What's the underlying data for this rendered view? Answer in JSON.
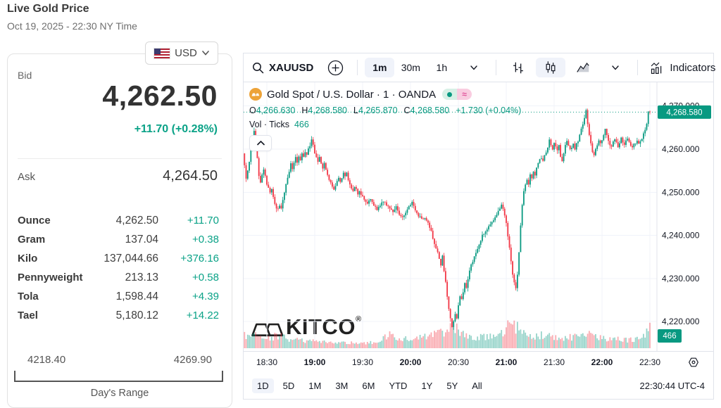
{
  "page": {
    "title": "Live Gold Price",
    "date": "Oct 19, 2025 - 22:30 NY Time"
  },
  "currency_selector": {
    "currency": "USD",
    "flag": "us-flag-icon"
  },
  "quote": {
    "bid_label": "Bid",
    "bid": "4,262.50",
    "bid_change": "+11.70 (+0.28%)",
    "ask_label": "Ask",
    "ask": "4,264.50",
    "units": [
      {
        "label": "Ounce",
        "value": "4,262.50",
        "change": "+11.70"
      },
      {
        "label": "Gram",
        "value": "137.04",
        "change": "+0.38"
      },
      {
        "label": "Kilo",
        "value": "137,044.66",
        "change": "+376.16"
      },
      {
        "label": "Pennyweight",
        "value": "213.13",
        "change": "+0.58"
      },
      {
        "label": "Tola",
        "value": "1,598.44",
        "change": "+4.39"
      },
      {
        "label": "Tael",
        "value": "5,180.12",
        "change": "+14.22"
      }
    ],
    "range": {
      "low": "4218.40",
      "high": "4269.90",
      "label": "Day's Range"
    },
    "accent_color": "#0aa287"
  },
  "chart": {
    "toolbar": {
      "symbol": "XAUUSD",
      "intervals": [
        "1m",
        "30m",
        "1h"
      ],
      "selected_interval": "1m",
      "indicators_label": "Indicators"
    },
    "legend": {
      "title": "Gold Spot / U.S. Dollar · 1 · OANDA",
      "status_approx_symbol": "≈",
      "ohlc": {
        "o_label": "O",
        "o": "4,266.630",
        "h_label": "H",
        "h": "4,268.580",
        "l_label": "L",
        "l": "4,265.870",
        "c_label": "C",
        "c": "4,268.580",
        "change": "+1.730 (+0.04%)"
      },
      "vol_label": "Vol · Ticks",
      "vol": "466"
    },
    "watermark": "KITCO",
    "ranges": [
      "1D",
      "5D",
      "1M",
      "3M",
      "6M",
      "YTD",
      "1Y",
      "5Y",
      "All"
    ],
    "selected_range": "1D",
    "clock": "22:30:44 UTC-4"
  },
  "chart_data": {
    "type": "candlestick",
    "title": "Gold Spot / U.S. Dollar · 1 · OANDA",
    "interval": "1m",
    "exchange": "OANDA",
    "last_price": 4268.58,
    "last_price_label": "4,268.580",
    "vol_badge": "466",
    "start_minute": -14,
    "end_minute": 240,
    "x_ticks": [
      {
        "m": 0,
        "label": "18:30",
        "bold": false
      },
      {
        "m": 30,
        "label": "19:00",
        "bold": true
      },
      {
        "m": 60,
        "label": "19:30",
        "bold": false
      },
      {
        "m": 90,
        "label": "20:00",
        "bold": true
      },
      {
        "m": 120,
        "label": "20:30",
        "bold": false
      },
      {
        "m": 150,
        "label": "21:00",
        "bold": true
      },
      {
        "m": 180,
        "label": "21:30",
        "bold": false
      },
      {
        "m": 210,
        "label": "22:00",
        "bold": true
      },
      {
        "m": 240,
        "label": "22:30",
        "bold": false
      }
    ],
    "y_ticks": [
      {
        "v": 4220,
        "label": "4,220.000"
      },
      {
        "v": 4230,
        "label": "4,230.000"
      },
      {
        "v": 4240,
        "label": "4,240.000"
      },
      {
        "v": 4250,
        "label": "4,250.000"
      },
      {
        "v": 4260,
        "label": "4,260.000"
      },
      {
        "v": 4270,
        "label": "4,270.000"
      }
    ],
    "colors": {
      "up": "#089981",
      "down": "#F23645",
      "grid": "#f0f3fa",
      "axis_text": "#131722",
      "badge": "#089981"
    },
    "price_path": [
      [
        -14,
        4259
      ],
      [
        -13,
        4256
      ],
      [
        -12,
        4253
      ],
      [
        -11,
        4255
      ],
      [
        -10,
        4257
      ],
      [
        -9,
        4260
      ],
      [
        -8,
        4262
      ],
      [
        -7,
        4264.5
      ],
      [
        -6,
        4263
      ],
      [
        -5,
        4258
      ],
      [
        -4,
        4254
      ],
      [
        -3,
        4252.5
      ],
      [
        -2,
        4254
      ],
      [
        -1,
        4255
      ],
      [
        0,
        4254
      ],
      [
        1,
        4252
      ],
      [
        2,
        4251
      ],
      [
        3,
        4250
      ],
      [
        4,
        4251
      ],
      [
        5,
        4249
      ],
      [
        6,
        4247.5
      ],
      [
        7,
        4246.5
      ],
      [
        8,
        4246
      ],
      [
        9,
        4247
      ],
      [
        10,
        4246.5
      ],
      [
        11,
        4248
      ],
      [
        12,
        4250
      ],
      [
        13,
        4252
      ],
      [
        14,
        4253.5
      ],
      [
        15,
        4255
      ],
      [
        16,
        4256.5
      ],
      [
        17,
        4255.5
      ],
      [
        18,
        4257
      ],
      [
        19,
        4258
      ],
      [
        20,
        4257
      ],
      [
        21,
        4258.5
      ],
      [
        22,
        4257.5
      ],
      [
        23,
        4259
      ],
      [
        24,
        4258
      ],
      [
        25,
        4259.5
      ],
      [
        26,
        4258.5
      ],
      [
        27,
        4260
      ],
      [
        28,
        4261
      ],
      [
        29,
        4262.5
      ],
      [
        30,
        4261
      ],
      [
        31,
        4259
      ],
      [
        32,
        4258
      ],
      [
        33,
        4257
      ],
      [
        34,
        4258
      ],
      [
        35,
        4256.5
      ],
      [
        36,
        4255.5
      ],
      [
        37,
        4256.5
      ],
      [
        38,
        4255
      ],
      [
        39,
        4254
      ],
      [
        40,
        4253
      ],
      [
        41,
        4252
      ],
      [
        42,
        4251.5
      ],
      [
        43,
        4250.5
      ],
      [
        44,
        4251.5
      ],
      [
        45,
        4252.5
      ],
      [
        46,
        4253.5
      ],
      [
        47,
        4252.5
      ],
      [
        48,
        4253.5
      ],
      [
        49,
        4254.5
      ],
      [
        50,
        4253.5
      ],
      [
        51,
        4254.5
      ],
      [
        52,
        4253
      ],
      [
        53,
        4252
      ],
      [
        54,
        4251
      ],
      [
        55,
        4250.5
      ],
      [
        56,
        4251.5
      ],
      [
        57,
        4250.5
      ],
      [
        58,
        4249.5
      ],
      [
        59,
        4250.5
      ],
      [
        60,
        4249.5
      ],
      [
        62,
        4248.5
      ],
      [
        64,
        4247.5
      ],
      [
        66,
        4248.5
      ],
      [
        68,
        4247
      ],
      [
        70,
        4246
      ],
      [
        72,
        4247
      ],
      [
        74,
        4248
      ],
      [
        76,
        4247
      ],
      [
        78,
        4246
      ],
      [
        80,
        4245.5
      ],
      [
        82,
        4246.5
      ],
      [
        84,
        4245
      ],
      [
        86,
        4244
      ],
      [
        88,
        4245
      ],
      [
        90,
        4246.5
      ],
      [
        92,
        4247.5
      ],
      [
        94,
        4246
      ],
      [
        96,
        4244.5
      ],
      [
        98,
        4244
      ],
      [
        100,
        4244
      ],
      [
        102,
        4243
      ],
      [
        104,
        4241
      ],
      [
        106,
        4238
      ],
      [
        108,
        4236
      ],
      [
        110,
        4233
      ],
      [
        111,
        4235
      ],
      [
        112,
        4232
      ],
      [
        113,
        4229
      ],
      [
        114,
        4226
      ],
      [
        115,
        4223
      ],
      [
        116,
        4220.5
      ],
      [
        117,
        4219
      ],
      [
        118,
        4220
      ],
      [
        119,
        4222
      ],
      [
        120,
        4221
      ],
      [
        121,
        4224
      ],
      [
        122,
        4226
      ],
      [
        123,
        4225
      ],
      [
        124,
        4227
      ],
      [
        125,
        4229
      ],
      [
        126,
        4228
      ],
      [
        127,
        4230
      ],
      [
        128,
        4232
      ],
      [
        130,
        4234
      ],
      [
        132,
        4236
      ],
      [
        134,
        4238
      ],
      [
        136,
        4240
      ],
      [
        138,
        4241
      ],
      [
        140,
        4242
      ],
      [
        142,
        4243
      ],
      [
        144,
        4244
      ],
      [
        146,
        4245.5
      ],
      [
        148,
        4247
      ],
      [
        149,
        4246
      ],
      [
        150,
        4244.5
      ],
      [
        151,
        4243
      ],
      [
        152,
        4240
      ],
      [
        153,
        4237
      ],
      [
        154,
        4234
      ],
      [
        155,
        4231
      ],
      [
        156,
        4229
      ],
      [
        157,
        4228
      ],
      [
        158,
        4231
      ],
      [
        159,
        4236
      ],
      [
        160,
        4242
      ],
      [
        161,
        4247
      ],
      [
        162,
        4250
      ],
      [
        163,
        4252
      ],
      [
        164,
        4253
      ],
      [
        165,
        4252
      ],
      [
        166,
        4254
      ],
      [
        167,
        4253
      ],
      [
        168,
        4255
      ],
      [
        169,
        4254
      ],
      [
        170,
        4256
      ],
      [
        171,
        4256.5
      ],
      [
        172,
        4257.5
      ],
      [
        173,
        4258
      ],
      [
        174,
        4257
      ],
      [
        175,
        4258.5
      ],
      [
        176,
        4259
      ],
      [
        177,
        4260.5
      ],
      [
        178,
        4262
      ],
      [
        179,
        4261
      ],
      [
        180,
        4260
      ],
      [
        181,
        4261.5
      ],
      [
        182,
        4260.5
      ],
      [
        183,
        4259.5
      ],
      [
        184,
        4261
      ],
      [
        185,
        4258
      ],
      [
        186,
        4257
      ],
      [
        187,
        4259
      ],
      [
        188,
        4261
      ],
      [
        189,
        4262
      ],
      [
        190,
        4261
      ],
      [
        191,
        4260
      ],
      [
        192,
        4260.5
      ],
      [
        193,
        4261
      ],
      [
        194,
        4260
      ],
      [
        195,
        4261.5
      ],
      [
        196,
        4262
      ],
      [
        197,
        4263.5
      ],
      [
        198,
        4264.5
      ],
      [
        199,
        4266
      ],
      [
        200,
        4267.5
      ],
      [
        201,
        4268.9
      ],
      [
        202,
        4266
      ],
      [
        203,
        4263.5
      ],
      [
        204,
        4261.5
      ],
      [
        205,
        4259.5
      ],
      [
        206,
        4258.5
      ],
      [
        207,
        4260
      ],
      [
        208,
        4261
      ],
      [
        209,
        4262
      ],
      [
        210,
        4261.5
      ],
      [
        211,
        4262
      ],
      [
        212,
        4263
      ],
      [
        213,
        4264.5
      ],
      [
        214,
        4263
      ],
      [
        215,
        4262
      ],
      [
        216,
        4261
      ],
      [
        217,
        4260.5
      ],
      [
        218,
        4261.5
      ],
      [
        219,
        4262.5
      ],
      [
        220,
        4261.5
      ],
      [
        221,
        4260.5
      ],
      [
        222,
        4261.5
      ],
      [
        223,
        4262.5
      ],
      [
        224,
        4261.5
      ],
      [
        225,
        4261
      ],
      [
        226,
        4262
      ],
      [
        227,
        4262.5
      ],
      [
        228,
        4261.5
      ],
      [
        229,
        4261
      ],
      [
        230,
        4260.5
      ],
      [
        231,
        4261
      ],
      [
        232,
        4261.5
      ],
      [
        233,
        4262
      ],
      [
        234,
        4261.5
      ],
      [
        235,
        4262
      ],
      [
        236,
        4262.5
      ],
      [
        237,
        4263.5
      ],
      [
        238,
        4264.5
      ],
      [
        239,
        4266
      ],
      [
        240,
        4268.58
      ]
    ],
    "volume_path": [
      [
        -14,
        0.5
      ],
      [
        -10,
        0.42
      ],
      [
        -7,
        0.55
      ],
      [
        -4,
        0.4
      ],
      [
        0,
        0.35
      ],
      [
        4,
        0.45
      ],
      [
        8,
        0.5
      ],
      [
        12,
        0.38
      ],
      [
        16,
        0.3
      ],
      [
        20,
        0.32
      ],
      [
        25,
        0.28
      ],
      [
        30,
        0.3
      ],
      [
        35,
        0.24
      ],
      [
        40,
        0.22
      ],
      [
        45,
        0.2
      ],
      [
        50,
        0.22
      ],
      [
        55,
        0.24
      ],
      [
        60,
        0.2
      ],
      [
        65,
        0.24
      ],
      [
        70,
        0.28
      ],
      [
        74,
        0.45
      ],
      [
        78,
        0.52
      ],
      [
        82,
        0.4
      ],
      [
        86,
        0.35
      ],
      [
        90,
        0.38
      ],
      [
        94,
        0.42
      ],
      [
        98,
        0.45
      ],
      [
        102,
        0.5
      ],
      [
        106,
        0.55
      ],
      [
        110,
        0.62
      ],
      [
        114,
        0.72
      ],
      [
        117,
        0.85
      ],
      [
        120,
        0.7
      ],
      [
        124,
        0.55
      ],
      [
        128,
        0.48
      ],
      [
        132,
        0.42
      ],
      [
        136,
        0.45
      ],
      [
        140,
        0.5
      ],
      [
        144,
        0.52
      ],
      [
        148,
        0.6
      ],
      [
        151,
        0.85
      ],
      [
        153,
        1.0
      ],
      [
        155,
        0.9
      ],
      [
        158,
        0.75
      ],
      [
        161,
        0.65
      ],
      [
        164,
        0.55
      ],
      [
        168,
        0.5
      ],
      [
        172,
        0.52
      ],
      [
        176,
        0.48
      ],
      [
        180,
        0.45
      ],
      [
        184,
        0.4
      ],
      [
        188,
        0.45
      ],
      [
        192,
        0.42
      ],
      [
        196,
        0.5
      ],
      [
        200,
        0.65
      ],
      [
        202,
        0.58
      ],
      [
        205,
        0.5
      ],
      [
        210,
        0.42
      ],
      [
        215,
        0.38
      ],
      [
        220,
        0.35
      ],
      [
        225,
        0.33
      ],
      [
        230,
        0.36
      ],
      [
        234,
        0.45
      ],
      [
        237,
        0.6
      ],
      [
        239,
        0.75
      ],
      [
        240,
        0.8
      ]
    ]
  }
}
